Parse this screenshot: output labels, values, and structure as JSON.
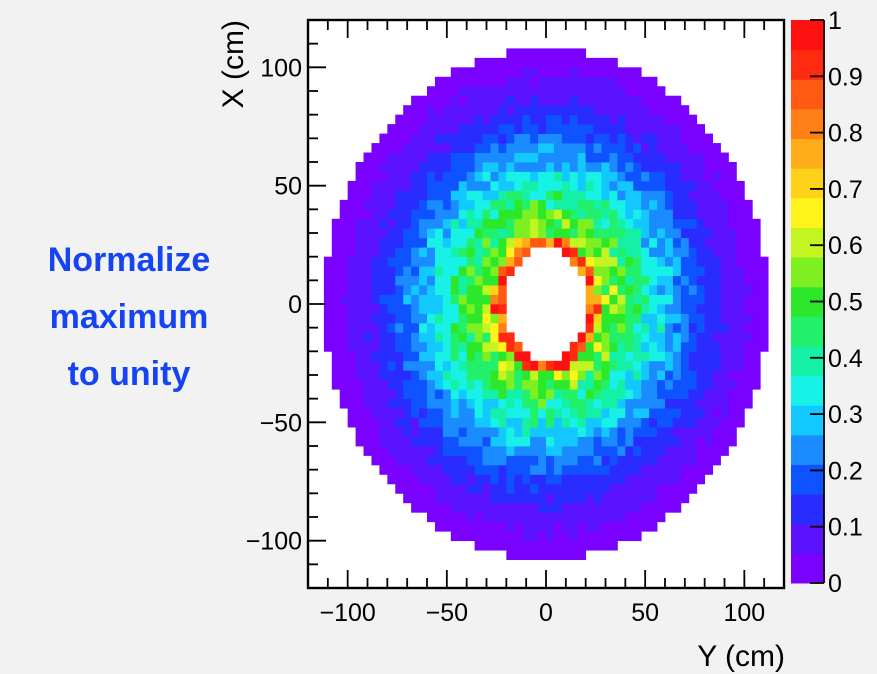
{
  "annotation": {
    "lines": [
      "Normalize",
      "maximum",
      "to unity"
    ],
    "color": "#1545f2"
  },
  "chart_data": {
    "type": "heatmap",
    "title": "",
    "xlabel": "Y (cm)",
    "ylabel": "X (cm)",
    "xlim": [
      -120,
      120
    ],
    "ylim": [
      -120,
      120
    ],
    "zlim": [
      0,
      1
    ],
    "x_ticks": [
      -100,
      -50,
      0,
      50,
      100
    ],
    "x_tick_labels": [
      "−100",
      "−50",
      "0",
      "50",
      "100"
    ],
    "y_ticks": [
      -100,
      -50,
      0,
      50,
      100
    ],
    "y_tick_labels": [
      "−100",
      "−50",
      "0",
      "50",
      "100"
    ],
    "z_ticks": [
      0,
      0.1,
      0.2,
      0.3,
      0.4,
      0.5,
      0.6,
      0.7,
      0.8,
      0.9,
      1
    ],
    "z_tick_labels": [
      "0",
      "0.1",
      "0.2",
      "0.3",
      "0.4",
      "0.5",
      "0.6",
      "0.7",
      "0.8",
      "0.9",
      "1"
    ],
    "bin_width_cm": 4,
    "description_of_values": {
      "outer_ellipse_half_width_Y": 112,
      "outer_ellipse_half_height_X": 108,
      "inner_hole_half_width_Y": 21,
      "inner_hole_half_height_X": 24,
      "peak_ring_radius_scale": 1.25,
      "peak_value": 1.0,
      "edge_value": 0.03
    },
    "colorbar_palette": [
      "#7a00ff",
      "#5a12ff",
      "#2a2cff",
      "#0f52ff",
      "#1a8cff",
      "#12c8ff",
      "#18f2e6",
      "#14f0a6",
      "#23f06a",
      "#2de82a",
      "#7ef021",
      "#c5f520",
      "#fff31c",
      "#ffd21a",
      "#ffad19",
      "#ff8016",
      "#ff5914",
      "#ff2b10",
      "#ff1010"
    ],
    "grid": false,
    "legend": "none"
  }
}
